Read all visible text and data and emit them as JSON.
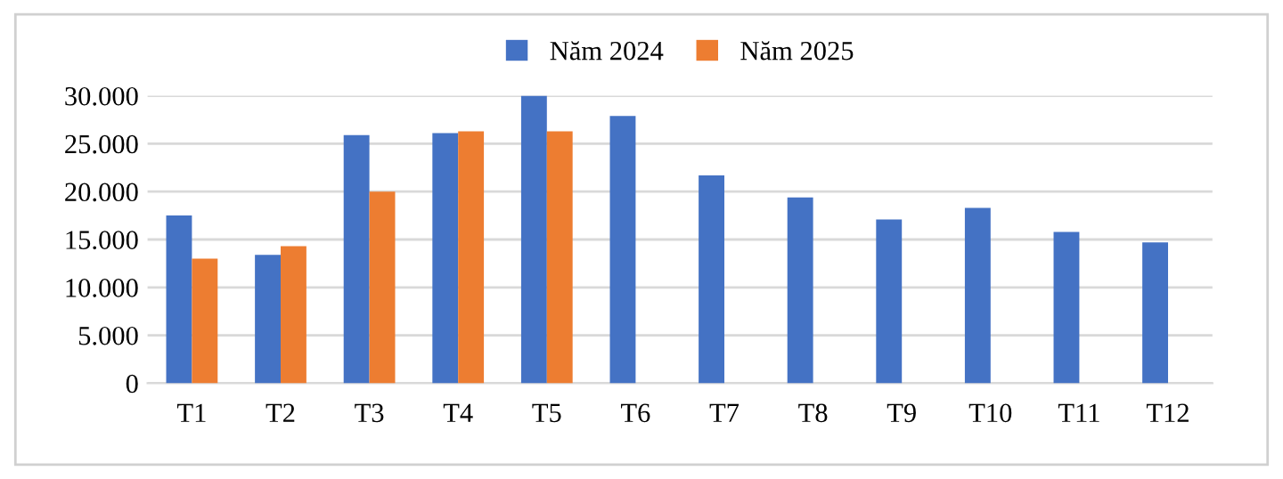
{
  "chart_data": {
    "type": "bar",
    "categories": [
      "T1",
      "T2",
      "T3",
      "T4",
      "T5",
      "T6",
      "T7",
      "T8",
      "T9",
      "T10",
      "T11",
      "T12"
    ],
    "series": [
      {
        "name": "Năm 2024",
        "color": "#4472c4",
        "values": [
          17500,
          13400,
          25900,
          26100,
          30000,
          27900,
          21700,
          19400,
          17100,
          18300,
          15800,
          14700
        ]
      },
      {
        "name": "Năm 2025",
        "color": "#ed7d31",
        "values": [
          13000,
          14300,
          20000,
          26300,
          26300,
          null,
          null,
          null,
          null,
          null,
          null,
          null
        ]
      }
    ],
    "ylim": [
      0,
      30000
    ],
    "yticks": [
      0,
      {
        "value": 5000,
        "label": "5.000"
      },
      {
        "value": 10000,
        "label": "10.000"
      },
      {
        "value": 15000,
        "label": "15.000"
      },
      {
        "value": 20000,
        "label": "20.000"
      },
      {
        "value": 25000,
        "label": "25.000"
      },
      {
        "value": 30000,
        "label": "30.000"
      }
    ],
    "grid": "y",
    "legend": "top"
  }
}
